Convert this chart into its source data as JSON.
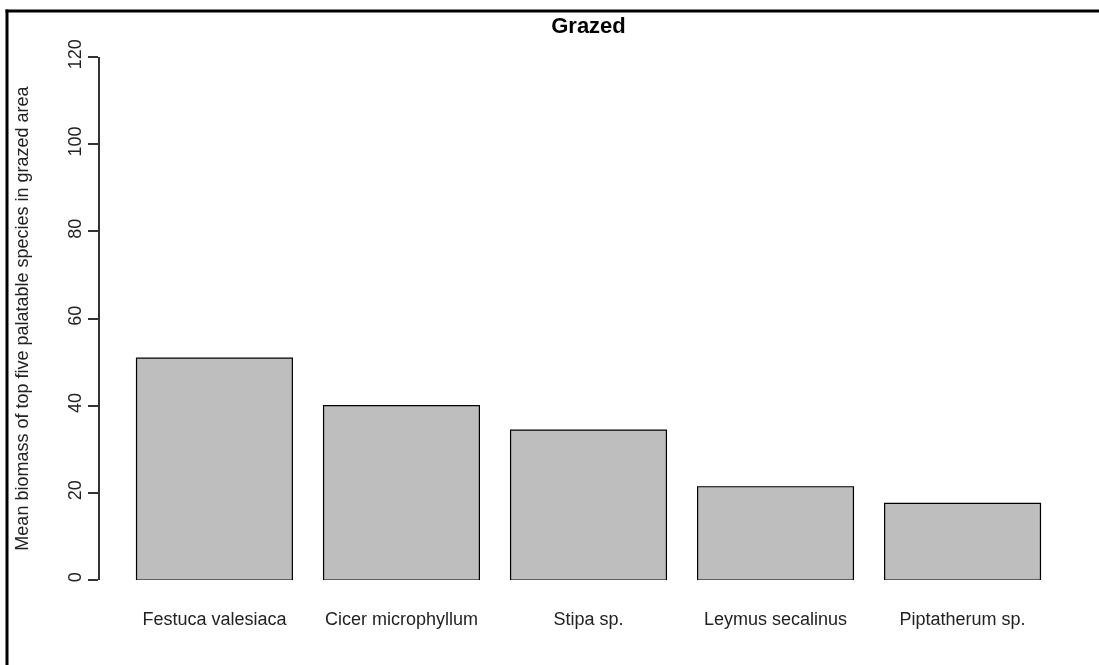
{
  "chart_data": {
    "type": "bar",
    "title": "Grazed",
    "ylabel": "Mean biomass of top five palatable species in grazed area",
    "categories": [
      "Festuca valesiaca",
      "Cicer microphyllum",
      "Stipa sp.",
      "Leymus secalinus",
      "Piptatherum sp."
    ],
    "values": [
      50.9,
      40.0,
      34.4,
      21.4,
      17.6
    ],
    "color": "#bebebe",
    "ylim": [
      0,
      120
    ],
    "yticks": [
      0,
      20,
      40,
      60,
      80,
      100,
      120
    ],
    "grid": false
  }
}
